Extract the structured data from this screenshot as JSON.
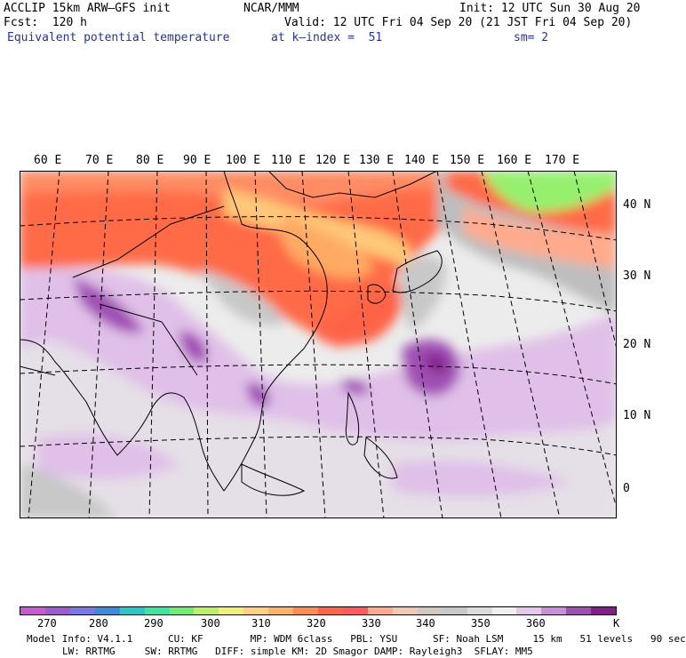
{
  "header": {
    "model": "ACCLIP 15km ARW–GFS init",
    "org": "NCAR/MMM",
    "init": "Init: 12 UTC Sun 30 Aug 20",
    "fcst": "Fcst:  120 h",
    "valid": "Valid: 12 UTC Fri 04 Sep 20 (21 JST Fri 04 Sep 20)",
    "field": "Equivalent potential temperature",
    "level": "at k–index =  51",
    "smooth": "sm= 2"
  },
  "map": {
    "lon_labels": [
      "60 E",
      "70 E",
      "80 E",
      "90 E",
      "100 E",
      "110 E",
      "120 E",
      "130 E",
      "140 E",
      "150 E",
      "160 E",
      "170 E"
    ],
    "lat_labels": [
      "40 N",
      "30 N",
      "20 N",
      "10 N",
      "0"
    ]
  },
  "colorbar": {
    "colors": [
      "#c85ad2",
      "#a05ad2",
      "#7878e6",
      "#3c8cdc",
      "#28c8c8",
      "#3ce6a0",
      "#6ef06e",
      "#bef064",
      "#f0f078",
      "#ffd282",
      "#ffb464",
      "#ff8c50",
      "#ff6446",
      "#ff5a5a",
      "#ffaa8c",
      "#f0c8b4",
      "#d2c8c0",
      "#c8c8c8",
      "#dcdcdc",
      "#f0f0f0",
      "#e6c8ec",
      "#c890d8",
      "#a050b4",
      "#821e8c"
    ],
    "labels": [
      "270",
      "280",
      "290",
      "300",
      "310",
      "320",
      "330",
      "340",
      "350",
      "360"
    ],
    "unit": "K"
  },
  "info": {
    "line1": "Model Info: V4.1.1      CU: KF        MP: WDM 6class   PBL: YSU      SF: Noah LSM     15 km   51 levels   90 sec",
    "line2": "LW: RRTMG     SW: RRTMG   DIFF: simple KM: 2D Smagor DAMP: Rayleigh3  SFLAY: MM5"
  }
}
